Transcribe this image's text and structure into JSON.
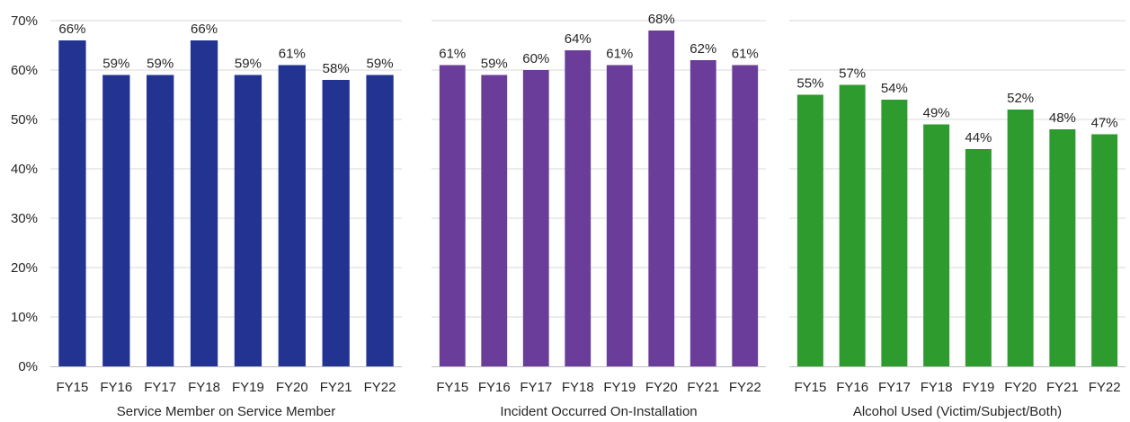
{
  "chart_data": [
    {
      "type": "bar",
      "xlabel": "Service Member on Service Member",
      "ylabel": "",
      "ylim": [
        0,
        70
      ],
      "y_ticks": [
        "0%",
        "10%",
        "20%",
        "30%",
        "40%",
        "50%",
        "60%",
        "70%"
      ],
      "show_y_tick_labels": true,
      "grid": true,
      "color": "#233391",
      "categories": [
        "FY15",
        "FY16",
        "FY17",
        "FY18",
        "FY19",
        "FY20",
        "FY21",
        "FY22"
      ],
      "values": [
        66,
        59,
        59,
        66,
        59,
        61,
        58,
        59
      ],
      "data_labels": [
        "66%",
        "59%",
        "59%",
        "66%",
        "59%",
        "61%",
        "58%",
        "59%"
      ]
    },
    {
      "type": "bar",
      "xlabel": "Incident Occurred On-Installation",
      "ylabel": "",
      "ylim": [
        0,
        70
      ],
      "y_ticks": [],
      "show_y_tick_labels": false,
      "grid": true,
      "color": "#6a3d9a",
      "categories": [
        "FY15",
        "FY16",
        "FY17",
        "FY18",
        "FY19",
        "FY20",
        "FY21",
        "FY22"
      ],
      "values": [
        61,
        59,
        60,
        64,
        61,
        68,
        62,
        61
      ],
      "data_labels": [
        "61%",
        "59%",
        "60%",
        "64%",
        "61%",
        "68%",
        "62%",
        "61%"
      ]
    },
    {
      "type": "bar",
      "xlabel": "Alcohol Used (Victim/Subject/Both)",
      "ylabel": "",
      "ylim": [
        0,
        70
      ],
      "y_ticks": [],
      "show_y_tick_labels": false,
      "grid": true,
      "color": "#2e9b2e",
      "categories": [
        "FY15",
        "FY16",
        "FY17",
        "FY18",
        "FY19",
        "FY20",
        "FY21",
        "FY22"
      ],
      "values": [
        55,
        57,
        54,
        49,
        44,
        52,
        48,
        47
      ],
      "data_labels": [
        "55%",
        "57%",
        "54%",
        "49%",
        "44%",
        "52%",
        "48%",
        "47%"
      ]
    }
  ]
}
